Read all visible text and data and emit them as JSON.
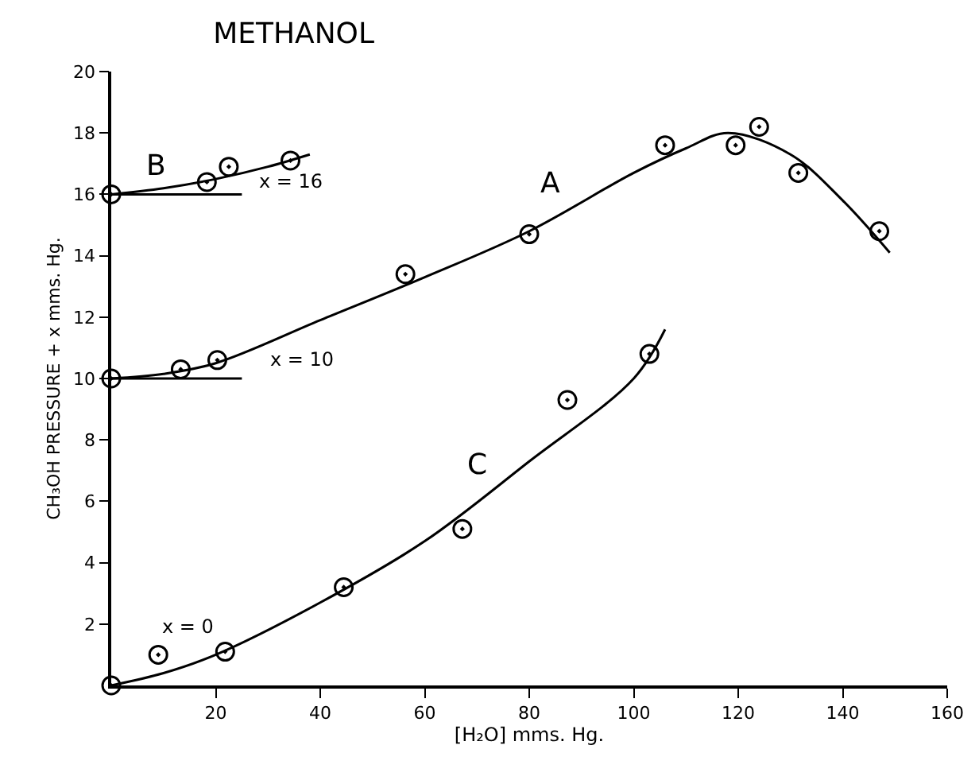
{
  "chart_data": {
    "type": "scatter",
    "title": "METHANOL",
    "xlabel": "[H₂O] mms. Hg.",
    "ylabel": "CH₃OH PRESSURE + x mms. Hg.",
    "xlim": [
      0,
      160
    ],
    "ylim": [
      0,
      20
    ],
    "xticks": [
      20,
      40,
      60,
      80,
      100,
      120,
      140,
      160
    ],
    "yticks": [
      2,
      4,
      6,
      8,
      10,
      12,
      14,
      16,
      18,
      20
    ],
    "marker": "circle",
    "series": [
      {
        "color": "#000000",
        "x": [
          0,
          13.3,
          20.3,
          56.3,
          80,
          106,
          119.5,
          124,
          131.5,
          147
        ],
        "values": [
          10,
          10.3,
          10.6,
          13.4,
          14.7,
          17.6,
          17.6,
          18.2,
          16.7,
          14.8
        ]
      },
      {
        "color": "#000000",
        "x": [
          0,
          18.3,
          22.5,
          34.3
        ],
        "values": [
          16,
          16.4,
          16.9,
          17.1
        ]
      },
      {
        "color": "#000000",
        "x": [
          0,
          9,
          21.8,
          44.5,
          67.2,
          87.3,
          103
        ],
        "values": [
          0,
          1,
          1.1,
          3.2,
          5.1,
          9.3,
          10.8
        ]
      },
      {
        "type": "line",
        "marker": "none",
        "color": "#000000",
        "line_style": "solid",
        "x": [
          0,
          10,
          20,
          40,
          60,
          80,
          100,
          110,
          118,
          130,
          140,
          149
        ],
        "values": [
          10,
          10.15,
          10.5,
          11.9,
          13.3,
          14.8,
          16.7,
          17.5,
          18,
          17.3,
          15.8,
          14.1
        ]
      },
      {
        "type": "line",
        "marker": "none",
        "color": "#000000",
        "line_style": "solid",
        "x": [
          0,
          10,
          20,
          30,
          38
        ],
        "values": [
          16,
          16.2,
          16.5,
          16.9,
          17.3
        ]
      },
      {
        "type": "line",
        "marker": "none",
        "color": "#000000",
        "line_style": "solid",
        "x": [
          0,
          10,
          20,
          40,
          60,
          80,
          100,
          106
        ],
        "values": [
          0,
          0.4,
          1,
          2.7,
          4.7,
          7.3,
          10,
          11.6
        ]
      },
      {
        "type": "line",
        "marker": "none",
        "color": "#000000",
        "line_style": "solid",
        "x": [
          0,
          25
        ],
        "values": [
          16,
          16
        ]
      },
      {
        "type": "line",
        "marker": "none",
        "color": "#000000",
        "line_style": "solid",
        "x": [
          0,
          25
        ],
        "values": [
          10,
          10
        ]
      }
    ],
    "annotations": [
      {
        "text": "A",
        "x": 80,
        "y": 14.8
      },
      {
        "text": "B",
        "x": 10,
        "y": 16.2
      },
      {
        "text": "C",
        "x": 80,
        "y": 7.3
      },
      {
        "text": "x = 16",
        "x": 25,
        "y": 16
      },
      {
        "text": "x = 10",
        "x": 25,
        "y": 10
      },
      {
        "text": "x = 0",
        "x": 9,
        "y": 1
      }
    ]
  }
}
